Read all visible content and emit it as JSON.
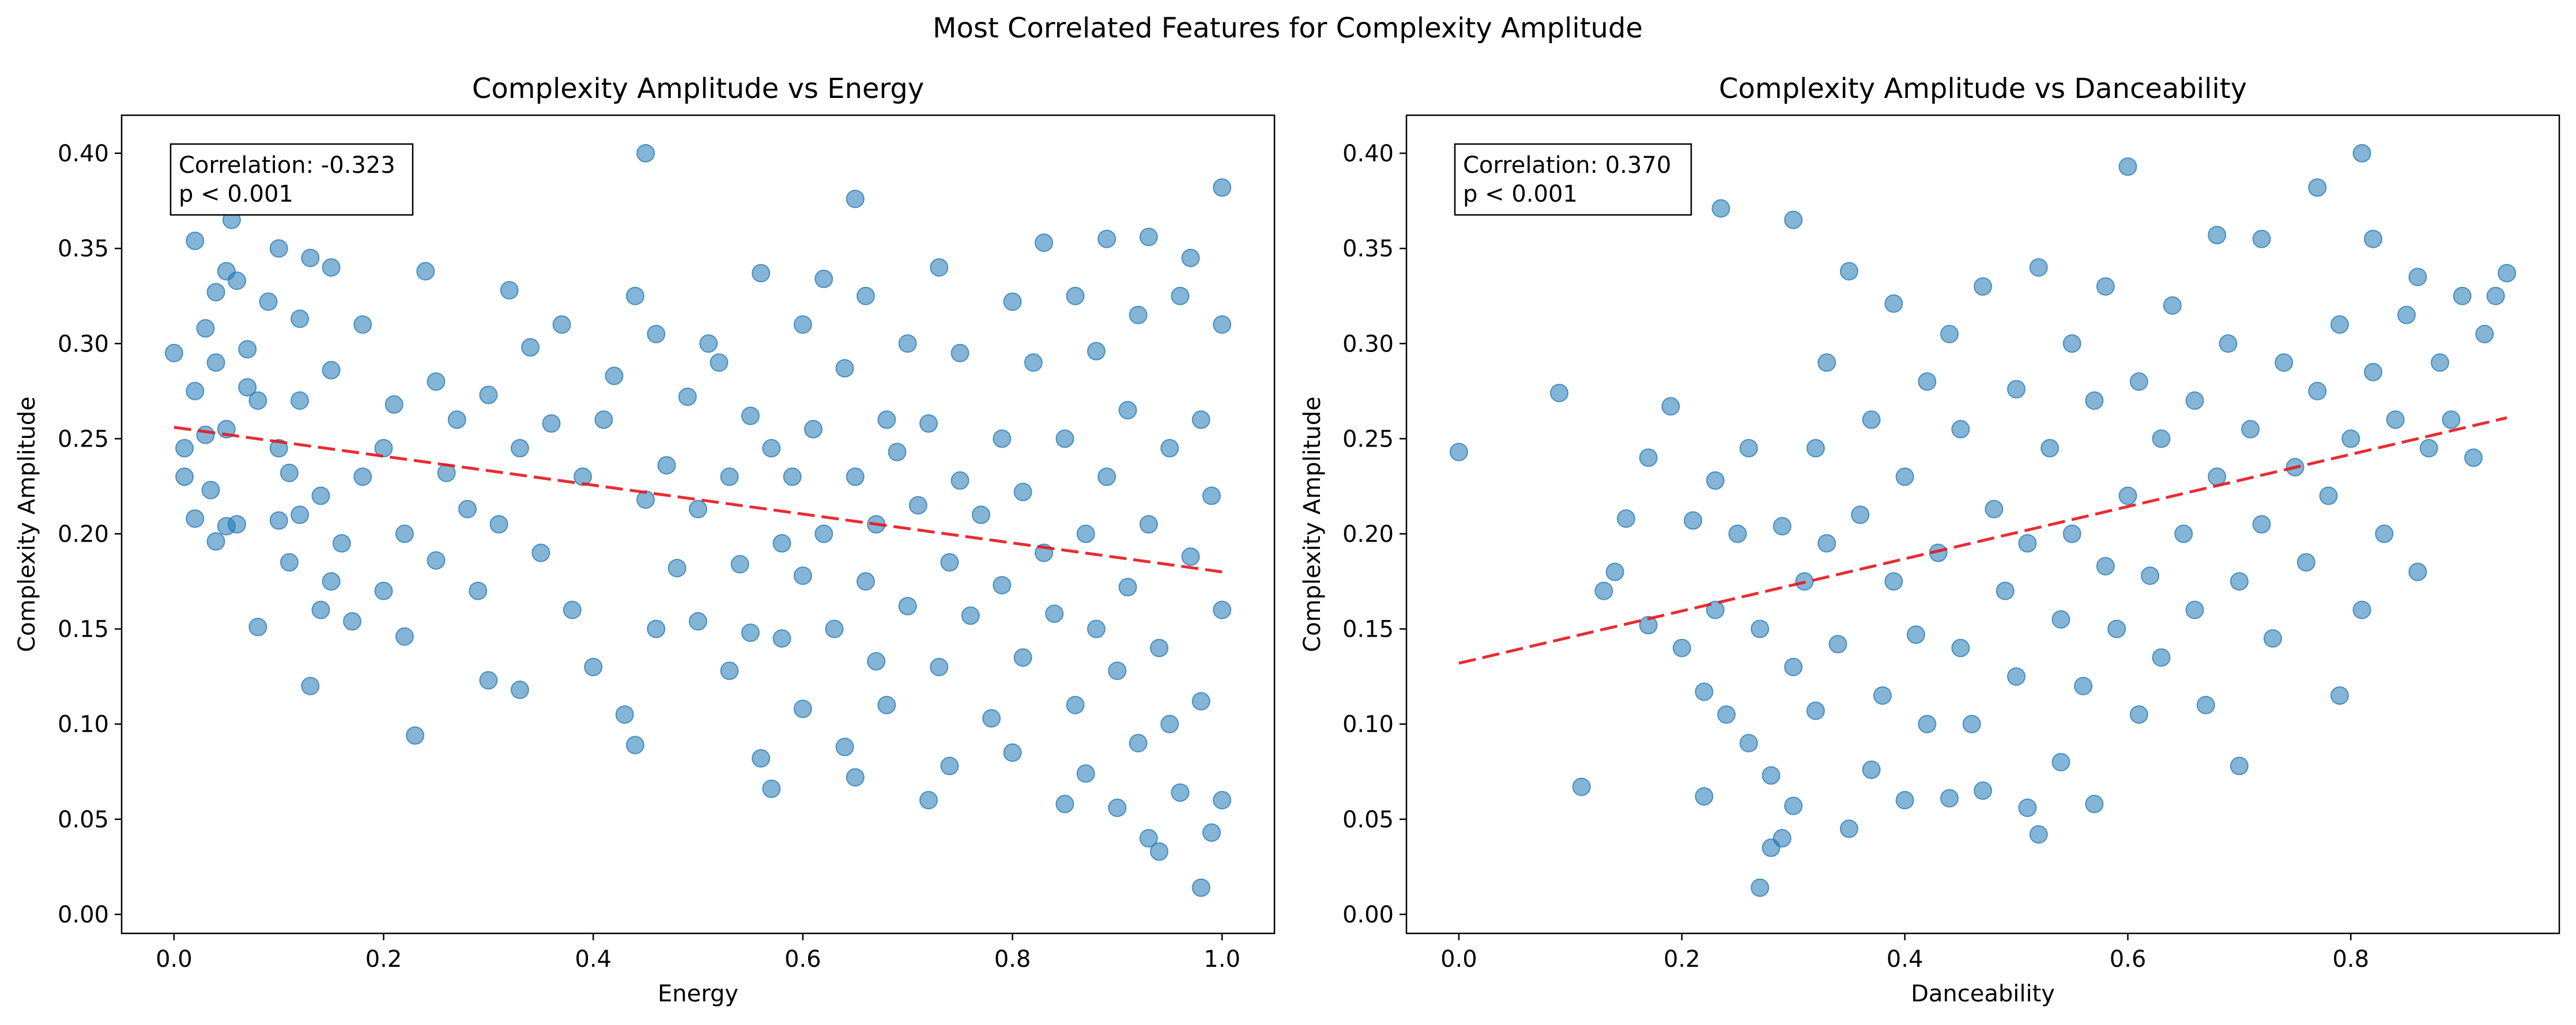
{
  "figure": {
    "suptitle": "Most Correlated Features for Complexity Amplitude"
  },
  "colors": {
    "points": "#1f77b4",
    "trend": "#e8141c",
    "axes": "#000000",
    "background": "#ffffff"
  },
  "chart_data": [
    {
      "type": "scatter",
      "title": "Complexity Amplitude vs Energy",
      "xlabel": "Energy",
      "ylabel": "Complexity Amplitude",
      "xlim": [
        -0.05,
        1.05
      ],
      "ylim": [
        -0.01,
        0.42
      ],
      "xticks": [
        0.0,
        0.2,
        0.4,
        0.6,
        0.8,
        1.0
      ],
      "xtick_labels": [
        "0.0",
        "0.2",
        "0.4",
        "0.6",
        "0.8",
        "1.0"
      ],
      "yticks": [
        0.0,
        0.05,
        0.1,
        0.15,
        0.2,
        0.25,
        0.3,
        0.35,
        0.4
      ],
      "ytick_labels": [
        "0.00",
        "0.05",
        "0.10",
        "0.15",
        "0.20",
        "0.25",
        "0.30",
        "0.35",
        "0.40"
      ],
      "grid": false,
      "annotation": {
        "lines": [
          "Correlation: -0.323",
          "p < 0.001"
        ],
        "placement": "top-left"
      },
      "trend_line": {
        "x": [
          0.0,
          1.0
        ],
        "y": [
          0.256,
          0.18
        ],
        "style": "dashed"
      },
      "points": [
        [
          0.0,
          0.295
        ],
        [
          0.01,
          0.245
        ],
        [
          0.01,
          0.23
        ],
        [
          0.02,
          0.208
        ],
        [
          0.02,
          0.275
        ],
        [
          0.02,
          0.354
        ],
        [
          0.03,
          0.308
        ],
        [
          0.03,
          0.252
        ],
        [
          0.035,
          0.223
        ],
        [
          0.04,
          0.196
        ],
        [
          0.04,
          0.29
        ],
        [
          0.04,
          0.327
        ],
        [
          0.05,
          0.338
        ],
        [
          0.05,
          0.204
        ],
        [
          0.05,
          0.255
        ],
        [
          0.055,
          0.365
        ],
        [
          0.06,
          0.333
        ],
        [
          0.06,
          0.205
        ],
        [
          0.07,
          0.277
        ],
        [
          0.07,
          0.297
        ],
        [
          0.08,
          0.151
        ],
        [
          0.08,
          0.27
        ],
        [
          0.09,
          0.322
        ],
        [
          0.1,
          0.245
        ],
        [
          0.1,
          0.35
        ],
        [
          0.1,
          0.207
        ],
        [
          0.11,
          0.185
        ],
        [
          0.11,
          0.232
        ],
        [
          0.12,
          0.313
        ],
        [
          0.12,
          0.21
        ],
        [
          0.12,
          0.27
        ],
        [
          0.13,
          0.12
        ],
        [
          0.13,
          0.345
        ],
        [
          0.14,
          0.22
        ],
        [
          0.14,
          0.16
        ],
        [
          0.15,
          0.286
        ],
        [
          0.15,
          0.175
        ],
        [
          0.15,
          0.34
        ],
        [
          0.16,
          0.195
        ],
        [
          0.17,
          0.154
        ],
        [
          0.18,
          0.23
        ],
        [
          0.18,
          0.31
        ],
        [
          0.2,
          0.17
        ],
        [
          0.2,
          0.245
        ],
        [
          0.21,
          0.268
        ],
        [
          0.22,
          0.146
        ],
        [
          0.22,
          0.2
        ],
        [
          0.23,
          0.094
        ],
        [
          0.24,
          0.338
        ],
        [
          0.25,
          0.28
        ],
        [
          0.25,
          0.186
        ],
        [
          0.26,
          0.232
        ],
        [
          0.27,
          0.26
        ],
        [
          0.28,
          0.213
        ],
        [
          0.29,
          0.17
        ],
        [
          0.3,
          0.123
        ],
        [
          0.3,
          0.273
        ],
        [
          0.31,
          0.205
        ],
        [
          0.32,
          0.328
        ],
        [
          0.33,
          0.245
        ],
        [
          0.33,
          0.118
        ],
        [
          0.34,
          0.298
        ],
        [
          0.35,
          0.19
        ],
        [
          0.36,
          0.258
        ],
        [
          0.37,
          0.31
        ],
        [
          0.38,
          0.16
        ],
        [
          0.39,
          0.23
        ],
        [
          0.4,
          0.13
        ],
        [
          0.41,
          0.26
        ],
        [
          0.42,
          0.283
        ],
        [
          0.43,
          0.105
        ],
        [
          0.44,
          0.089
        ],
        [
          0.44,
          0.325
        ],
        [
          0.45,
          0.4
        ],
        [
          0.45,
          0.218
        ],
        [
          0.46,
          0.305
        ],
        [
          0.46,
          0.15
        ],
        [
          0.47,
          0.236
        ],
        [
          0.48,
          0.182
        ],
        [
          0.49,
          0.272
        ],
        [
          0.5,
          0.154
        ],
        [
          0.5,
          0.213
        ],
        [
          0.51,
          0.3
        ],
        [
          0.52,
          0.29
        ],
        [
          0.53,
          0.23
        ],
        [
          0.53,
          0.128
        ],
        [
          0.54,
          0.184
        ],
        [
          0.55,
          0.262
        ],
        [
          0.55,
          0.148
        ],
        [
          0.56,
          0.082
        ],
        [
          0.56,
          0.337
        ],
        [
          0.57,
          0.066
        ],
        [
          0.57,
          0.245
        ],
        [
          0.58,
          0.195
        ],
        [
          0.58,
          0.145
        ],
        [
          0.59,
          0.23
        ],
        [
          0.6,
          0.178
        ],
        [
          0.6,
          0.108
        ],
        [
          0.6,
          0.31
        ],
        [
          0.61,
          0.255
        ],
        [
          0.62,
          0.334
        ],
        [
          0.62,
          0.2
        ],
        [
          0.63,
          0.15
        ],
        [
          0.64,
          0.088
        ],
        [
          0.64,
          0.287
        ],
        [
          0.65,
          0.376
        ],
        [
          0.65,
          0.23
        ],
        [
          0.65,
          0.072
        ],
        [
          0.66,
          0.175
        ],
        [
          0.66,
          0.325
        ],
        [
          0.67,
          0.205
        ],
        [
          0.67,
          0.133
        ],
        [
          0.68,
          0.26
        ],
        [
          0.68,
          0.11
        ],
        [
          0.69,
          0.243
        ],
        [
          0.7,
          0.162
        ],
        [
          0.7,
          0.3
        ],
        [
          0.71,
          0.215
        ],
        [
          0.72,
          0.06
        ],
        [
          0.72,
          0.258
        ],
        [
          0.73,
          0.34
        ],
        [
          0.73,
          0.13
        ],
        [
          0.74,
          0.185
        ],
        [
          0.74,
          0.078
        ],
        [
          0.75,
          0.228
        ],
        [
          0.75,
          0.295
        ],
        [
          0.76,
          0.157
        ],
        [
          0.77,
          0.21
        ],
        [
          0.78,
          0.103
        ],
        [
          0.79,
          0.25
        ],
        [
          0.79,
          0.173
        ],
        [
          0.8,
          0.322
        ],
        [
          0.8,
          0.085
        ],
        [
          0.81,
          0.135
        ],
        [
          0.81,
          0.222
        ],
        [
          0.82,
          0.29
        ],
        [
          0.83,
          0.353
        ],
        [
          0.83,
          0.19
        ],
        [
          0.84,
          0.158
        ],
        [
          0.85,
          0.058
        ],
        [
          0.85,
          0.25
        ],
        [
          0.86,
          0.325
        ],
        [
          0.86,
          0.11
        ],
        [
          0.87,
          0.2
        ],
        [
          0.87,
          0.074
        ],
        [
          0.88,
          0.296
        ],
        [
          0.88,
          0.15
        ],
        [
          0.89,
          0.355
        ],
        [
          0.89,
          0.23
        ],
        [
          0.9,
          0.128
        ],
        [
          0.9,
          0.056
        ],
        [
          0.91,
          0.265
        ],
        [
          0.91,
          0.172
        ],
        [
          0.92,
          0.09
        ],
        [
          0.92,
          0.315
        ],
        [
          0.93,
          0.04
        ],
        [
          0.93,
          0.356
        ],
        [
          0.93,
          0.205
        ],
        [
          0.94,
          0.14
        ],
        [
          0.94,
          0.033
        ],
        [
          0.95,
          0.245
        ],
        [
          0.95,
          0.1
        ],
        [
          0.96,
          0.064
        ],
        [
          0.96,
          0.325
        ],
        [
          0.97,
          0.188
        ],
        [
          0.97,
          0.345
        ],
        [
          0.98,
          0.014
        ],
        [
          0.98,
          0.112
        ],
        [
          0.98,
          0.26
        ],
        [
          0.99,
          0.043
        ],
        [
          0.99,
          0.22
        ],
        [
          1.0,
          0.382
        ],
        [
          1.0,
          0.31
        ],
        [
          1.0,
          0.06
        ],
        [
          1.0,
          0.16
        ]
      ]
    },
    {
      "type": "scatter",
      "title": "Complexity Amplitude vs Danceability",
      "xlabel": "Danceability",
      "ylabel": "Complexity Amplitude",
      "xlim": [
        -0.047,
        0.987
      ],
      "ylim": [
        -0.01,
        0.42
      ],
      "xticks": [
        0.0,
        0.2,
        0.4,
        0.6,
        0.8
      ],
      "xtick_labels": [
        "0.0",
        "0.2",
        "0.4",
        "0.6",
        "0.8"
      ],
      "yticks": [
        0.0,
        0.05,
        0.1,
        0.15,
        0.2,
        0.25,
        0.3,
        0.35,
        0.4
      ],
      "ytick_labels": [
        "0.00",
        "0.05",
        "0.10",
        "0.15",
        "0.20",
        "0.25",
        "0.30",
        "0.35",
        "0.40"
      ],
      "grid": false,
      "annotation": {
        "lines": [
          "Correlation: 0.370",
          "p < 0.001"
        ],
        "placement": "top-left"
      },
      "trend_line": {
        "x": [
          0.0,
          0.94
        ],
        "y": [
          0.132,
          0.261
        ],
        "style": "dashed"
      },
      "points": [
        [
          0.0,
          0.243
        ],
        [
          0.09,
          0.274
        ],
        [
          0.11,
          0.067
        ],
        [
          0.13,
          0.17
        ],
        [
          0.14,
          0.18
        ],
        [
          0.15,
          0.208
        ],
        [
          0.17,
          0.152
        ],
        [
          0.17,
          0.24
        ],
        [
          0.19,
          0.267
        ],
        [
          0.2,
          0.14
        ],
        [
          0.21,
          0.207
        ],
        [
          0.22,
          0.117
        ],
        [
          0.22,
          0.062
        ],
        [
          0.23,
          0.16
        ],
        [
          0.23,
          0.228
        ],
        [
          0.235,
          0.371
        ],
        [
          0.24,
          0.105
        ],
        [
          0.25,
          0.2
        ],
        [
          0.26,
          0.09
        ],
        [
          0.26,
          0.245
        ],
        [
          0.27,
          0.014
        ],
        [
          0.27,
          0.15
        ],
        [
          0.28,
          0.073
        ],
        [
          0.28,
          0.035
        ],
        [
          0.29,
          0.204
        ],
        [
          0.29,
          0.04
        ],
        [
          0.3,
          0.13
        ],
        [
          0.3,
          0.365
        ],
        [
          0.3,
          0.057
        ],
        [
          0.31,
          0.175
        ],
        [
          0.32,
          0.245
        ],
        [
          0.32,
          0.107
        ],
        [
          0.33,
          0.29
        ],
        [
          0.33,
          0.195
        ],
        [
          0.34,
          0.142
        ],
        [
          0.35,
          0.045
        ],
        [
          0.35,
          0.338
        ],
        [
          0.36,
          0.21
        ],
        [
          0.37,
          0.076
        ],
        [
          0.37,
          0.26
        ],
        [
          0.38,
          0.115
        ],
        [
          0.39,
          0.175
        ],
        [
          0.39,
          0.321
        ],
        [
          0.4,
          0.06
        ],
        [
          0.4,
          0.23
        ],
        [
          0.41,
          0.147
        ],
        [
          0.42,
          0.28
        ],
        [
          0.42,
          0.1
        ],
        [
          0.43,
          0.19
        ],
        [
          0.44,
          0.061
        ],
        [
          0.44,
          0.305
        ],
        [
          0.45,
          0.255
        ],
        [
          0.45,
          0.14
        ],
        [
          0.46,
          0.1
        ],
        [
          0.47,
          0.33
        ],
        [
          0.47,
          0.065
        ],
        [
          0.48,
          0.213
        ],
        [
          0.49,
          0.17
        ],
        [
          0.5,
          0.276
        ],
        [
          0.5,
          0.125
        ],
        [
          0.51,
          0.056
        ],
        [
          0.51,
          0.195
        ],
        [
          0.52,
          0.34
        ],
        [
          0.52,
          0.042
        ],
        [
          0.53,
          0.245
        ],
        [
          0.54,
          0.155
        ],
        [
          0.54,
          0.08
        ],
        [
          0.55,
          0.3
        ],
        [
          0.55,
          0.2
        ],
        [
          0.56,
          0.12
        ],
        [
          0.57,
          0.058
        ],
        [
          0.57,
          0.27
        ],
        [
          0.58,
          0.183
        ],
        [
          0.58,
          0.33
        ],
        [
          0.59,
          0.15
        ],
        [
          0.6,
          0.22
        ],
        [
          0.6,
          0.393
        ],
        [
          0.61,
          0.105
        ],
        [
          0.61,
          0.28
        ],
        [
          0.62,
          0.178
        ],
        [
          0.63,
          0.25
        ],
        [
          0.63,
          0.135
        ],
        [
          0.64,
          0.32
        ],
        [
          0.65,
          0.2
        ],
        [
          0.66,
          0.16
        ],
        [
          0.66,
          0.27
        ],
        [
          0.67,
          0.11
        ],
        [
          0.68,
          0.23
        ],
        [
          0.68,
          0.357
        ],
        [
          0.69,
          0.3
        ],
        [
          0.7,
          0.175
        ],
        [
          0.7,
          0.078
        ],
        [
          0.71,
          0.255
        ],
        [
          0.72,
          0.355
        ],
        [
          0.72,
          0.205
        ],
        [
          0.73,
          0.145
        ],
        [
          0.74,
          0.29
        ],
        [
          0.75,
          0.235
        ],
        [
          0.76,
          0.185
        ],
        [
          0.77,
          0.382
        ],
        [
          0.77,
          0.275
        ],
        [
          0.78,
          0.22
        ],
        [
          0.79,
          0.115
        ],
        [
          0.79,
          0.31
        ],
        [
          0.8,
          0.25
        ],
        [
          0.81,
          0.16
        ],
        [
          0.81,
          0.4
        ],
        [
          0.82,
          0.355
        ],
        [
          0.82,
          0.285
        ],
        [
          0.83,
          0.2
        ],
        [
          0.84,
          0.26
        ],
        [
          0.85,
          0.315
        ],
        [
          0.86,
          0.18
        ],
        [
          0.86,
          0.335
        ],
        [
          0.87,
          0.245
        ],
        [
          0.88,
          0.29
        ],
        [
          0.89,
          0.26
        ],
        [
          0.9,
          0.325
        ],
        [
          0.91,
          0.24
        ],
        [
          0.92,
          0.305
        ],
        [
          0.93,
          0.325
        ],
        [
          0.94,
          0.337
        ]
      ]
    }
  ]
}
